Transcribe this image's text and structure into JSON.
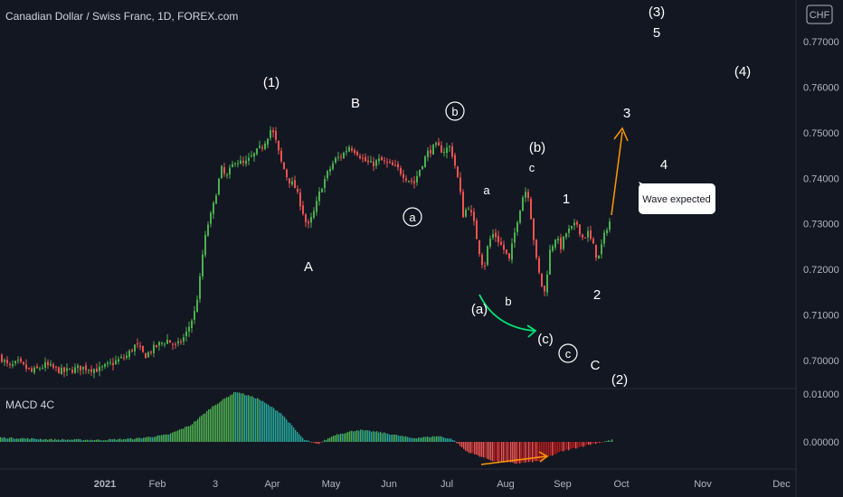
{
  "header": {
    "title": "Canadian Dollar / Swiss Franc, 1D, FOREX.com",
    "currency_badge": "CHF"
  },
  "macd": {
    "label": "MACD 4C",
    "colors": {
      "positive": "#26a69a",
      "positive_bright": "#4caf50",
      "negative": "#ef5350"
    }
  },
  "colors": {
    "up": "#4caf50",
    "down": "#ef5350",
    "orange_arrow": "#ff9800",
    "green_arrow": "#00e676",
    "background": "#131722"
  },
  "chart_data": {
    "type": "candlestick",
    "symbol": "CADCHF",
    "interval": "1D",
    "price_axis": {
      "ticks": [
        "0.77000",
        "0.76000",
        "0.75000",
        "0.74000",
        "0.73000",
        "0.72000",
        "0.71000",
        "0.70000"
      ],
      "range": [
        0.6945,
        0.7795
      ]
    },
    "macd_axis": {
      "ticks": [
        "0.01000",
        "0.00000"
      ]
    },
    "time_axis": [
      "2021",
      "Feb",
      "3",
      "Apr",
      "May",
      "Jun",
      "Jul",
      "Aug",
      "Sep",
      "Oct",
      "Nov",
      "Dec"
    ],
    "price_path": [
      [
        0,
        0.701
      ],
      [
        10,
        0.6985
      ],
      [
        20,
        0.6995
      ],
      [
        35,
        0.6975
      ],
      [
        50,
        0.699
      ],
      [
        70,
        0.6975
      ],
      [
        90,
        0.6985
      ],
      [
        110,
        0.698
      ],
      [
        125,
        0.6995
      ],
      [
        140,
        0.701
      ],
      [
        150,
        0.7035
      ],
      [
        160,
        0.701
      ],
      [
        175,
        0.7035
      ],
      [
        185,
        0.7045
      ],
      [
        195,
        0.703
      ],
      [
        205,
        0.7055
      ],
      [
        215,
        0.7105
      ],
      [
        220,
        0.716
      ],
      [
        225,
        0.725
      ],
      [
        230,
        0.73
      ],
      [
        235,
        0.733
      ],
      [
        240,
        0.738
      ],
      [
        245,
        0.742
      ],
      [
        250,
        0.74
      ],
      [
        260,
        0.744
      ],
      [
        270,
        0.743
      ],
      [
        280,
        0.745
      ],
      [
        290,
        0.747
      ],
      [
        300,
        0.751
      ],
      [
        305,
        0.748
      ],
      [
        310,
        0.744
      ],
      [
        318,
        0.74
      ],
      [
        326,
        0.738
      ],
      [
        333,
        0.734
      ],
      [
        340,
        0.729
      ],
      [
        348,
        0.733
      ],
      [
        355,
        0.738
      ],
      [
        362,
        0.741
      ],
      [
        370,
        0.744
      ],
      [
        378,
        0.745
      ],
      [
        386,
        0.747
      ],
      [
        394,
        0.746
      ],
      [
        402,
        0.744
      ],
      [
        410,
        0.743
      ],
      [
        420,
        0.744
      ],
      [
        430,
        0.743
      ],
      [
        440,
        0.742
      ],
      [
        450,
        0.74
      ],
      [
        458,
        0.739
      ],
      [
        466,
        0.743
      ],
      [
        474,
        0.746
      ],
      [
        482,
        0.747
      ],
      [
        490,
        0.746
      ],
      [
        498,
        0.747
      ],
      [
        504,
        0.742
      ],
      [
        508,
        0.738
      ],
      [
        512,
        0.732
      ],
      [
        518,
        0.734
      ],
      [
        524,
        0.73
      ],
      [
        530,
        0.724
      ],
      [
        535,
        0.72
      ],
      [
        540,
        0.726
      ],
      [
        546,
        0.728
      ],
      [
        552,
        0.726
      ],
      [
        558,
        0.724
      ],
      [
        563,
        0.722
      ],
      [
        568,
        0.727
      ],
      [
        573,
        0.732
      ],
      [
        578,
        0.736
      ],
      [
        583,
        0.738
      ],
      [
        588,
        0.73
      ],
      [
        593,
        0.722
      ],
      [
        598,
        0.717
      ],
      [
        602,
        0.715
      ],
      [
        608,
        0.724
      ],
      [
        614,
        0.727
      ],
      [
        620,
        0.725
      ],
      [
        626,
        0.728
      ],
      [
        632,
        0.729
      ],
      [
        638,
        0.73
      ],
      [
        644,
        0.727
      ],
      [
        650,
        0.728
      ],
      [
        656,
        0.725
      ],
      [
        661,
        0.722
      ],
      [
        666,
        0.726
      ],
      [
        672,
        0.73
      ],
      [
        676,
        0.731
      ]
    ],
    "macd_path": [
      [
        0,
        0.0009
      ],
      [
        60,
        0.0005
      ],
      [
        110,
        0.0004
      ],
      [
        150,
        0.0007
      ],
      [
        185,
        0.0015
      ],
      [
        210,
        0.0035
      ],
      [
        235,
        0.0075
      ],
      [
        260,
        0.0105
      ],
      [
        285,
        0.009
      ],
      [
        310,
        0.006
      ],
      [
        335,
        0.0005
      ],
      [
        350,
        -0.0005
      ],
      [
        370,
        0.0015
      ],
      [
        395,
        0.0025
      ],
      [
        420,
        0.002
      ],
      [
        455,
        0.0008
      ],
      [
        485,
        0.0012
      ],
      [
        500,
        0.0005
      ],
      [
        515,
        -0.002
      ],
      [
        545,
        -0.004
      ],
      [
        570,
        -0.0045
      ],
      [
        595,
        -0.004
      ],
      [
        620,
        -0.002
      ],
      [
        650,
        -0.0006
      ],
      [
        676,
        0.0004
      ]
    ],
    "wave_labels": [
      "(1)",
      "A",
      "B",
      "b",
      "a",
      "a",
      "(b)",
      "c",
      "(a)",
      "b",
      "(c)",
      "c",
      "C",
      "(2)",
      "1",
      "2",
      "3",
      "4",
      "(3)",
      "5",
      "(4)"
    ],
    "annotations": [
      "Wave expected"
    ]
  }
}
